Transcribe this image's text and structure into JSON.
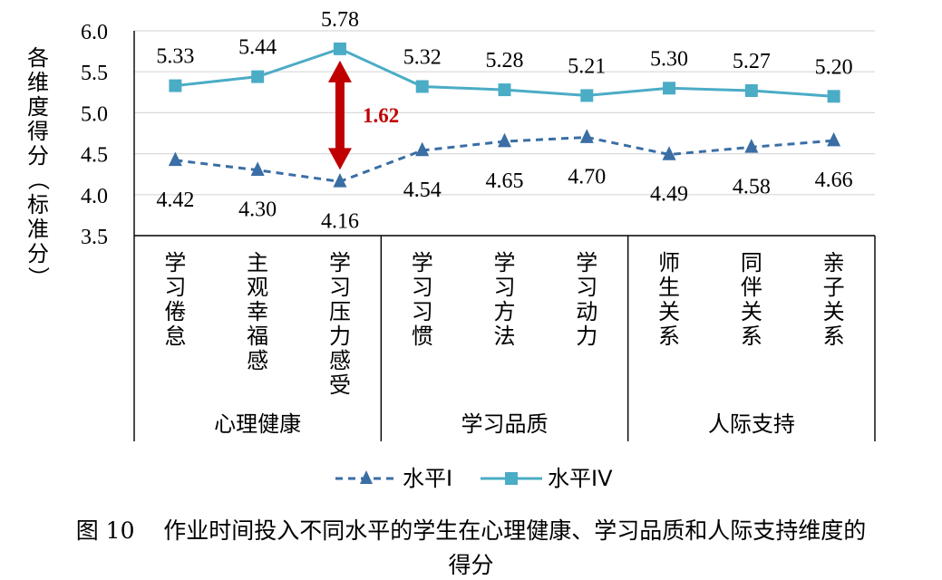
{
  "chart_data": {
    "type": "line",
    "ylabel": "各维度得分（标准分）",
    "ylim": [
      3.5,
      6.0
    ],
    "yticks": [
      "3.5",
      "4.0",
      "4.5",
      "5.0",
      "5.5",
      "6.0"
    ],
    "grid": true,
    "legend_position": "bottom",
    "categories": [
      "学习倦怠",
      "主观幸福感",
      "学习压力感受",
      "学习习惯",
      "学习方法",
      "学习动力",
      "师生关系",
      "同伴关系",
      "亲子关系"
    ],
    "groups": [
      {
        "label": "心理健康",
        "count": 3
      },
      {
        "label": "学习品质",
        "count": 3
      },
      {
        "label": "人际支持",
        "count": 3
      }
    ],
    "series": [
      {
        "name": "水平I",
        "color": "#3a6ea5",
        "style": "dashed",
        "marker": "triangle",
        "values": [
          4.42,
          4.3,
          4.16,
          4.54,
          4.65,
          4.7,
          4.49,
          4.58,
          4.66
        ],
        "labels": [
          "4.42",
          "4.30",
          "4.16",
          "4.54",
          "4.65",
          "4.70",
          "4.49",
          "4.58",
          "4.66"
        ]
      },
      {
        "name": "水平IV",
        "color": "#4bacc6",
        "style": "solid",
        "marker": "square",
        "values": [
          5.33,
          5.44,
          5.78,
          5.32,
          5.28,
          5.21,
          5.3,
          5.27,
          5.2
        ],
        "labels": [
          "5.33",
          "5.44",
          "5.78",
          "5.32",
          "5.28",
          "5.21",
          "5.30",
          "5.27",
          "5.20"
        ]
      }
    ],
    "annotation": {
      "text": "1.62",
      "category_index": 2,
      "color": "#c00000"
    }
  },
  "caption": {
    "line1": "图 10    作业时间投入不同水平的学生在心理健康、学习品质和人际支持维度的",
    "line2": "得分"
  }
}
